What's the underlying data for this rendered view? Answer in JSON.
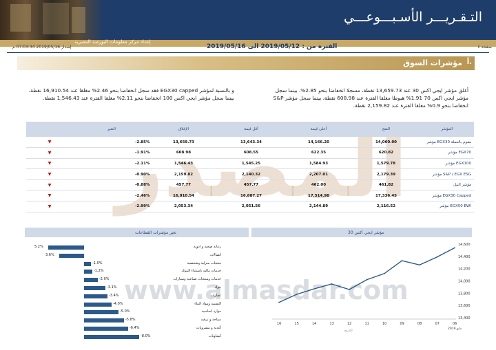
{
  "banner": {
    "title": "التـقـريـــر الأسـبـــوعـــي"
  },
  "subbar": {
    "text": "إعداد مركز معلومات البورصة المصرية"
  },
  "meta": {
    "page": "صفحة ٤",
    "period": "الفترة من : 2019/05/12 الى 2019/05/16",
    "issued": "إصدار 2019/05/16 07:03:34 م"
  },
  "section": {
    "num": "أ.",
    "title": "مؤشرات السوق"
  },
  "paragraphs": {
    "right": "أغلق مؤشر ايجي اكس 30 عند 13,659.73 نقطة، مسجلا انخفاضا بنحو 2.85%. بينما سجل مؤشر ايجي اكس 70 1.91% هبوطا مغلقا الفترة عند 608.98 نقطة، بينما سجل مؤشر S&P انخفاضا بنحو 0.9% مغلقا الفترة عند 2,159.82 نقطة.",
    "left": "و بالنسبة لمؤشر EGX30 capped فقد سجل انخفاضا بنحو 2.46% مغلقا عند 16,910.54 نقطة، بينما سجل مؤشر ايجي اكس 100 انخفاضا بنحو 2.11% مغلقا الفترة عند 1,546.43 نقطة."
  },
  "table": {
    "headers": [
      "المؤشر",
      "الفتح",
      "أعلى قيمة",
      "أقل قيمة",
      "الإغلاق",
      "التغير"
    ],
    "rows": [
      {
        "name": "مؤشر EGX30 مقوم بالعملة",
        "open": "14,060.00",
        "high": "14,166.20",
        "low": "13,643.34",
        "close": "13,659.73",
        "change": "-2.85%"
      },
      {
        "name": "مؤشر EGX70",
        "open": "620.82",
        "high": "622.35",
        "low": "608.55",
        "close": "608.98",
        "change": "-1.91%"
      },
      {
        "name": "مؤشر EGX100",
        "open": "1,579.78",
        "high": "1,584.93",
        "low": "1,545.25",
        "close": "1,546.43",
        "change": "-2.11%"
      },
      {
        "name": "مؤشر S&P / EGX ESG",
        "open": "2,179.39",
        "high": "2,207.01",
        "low": "2,140.32",
        "close": "2,159.82",
        "change": "-0.90%"
      },
      {
        "name": "مؤشر النيل",
        "open": "461.82",
        "high": "462.00",
        "low": "457.77",
        "close": "457.77",
        "change": "-0.88%"
      },
      {
        "name": "مؤشر EGX30 Capped",
        "open": "17,336.45",
        "high": "17,514.98",
        "low": "16,887.27",
        "close": "16,910.54",
        "change": "-2.46%"
      },
      {
        "name": "مؤشر EGX50 EWI",
        "open": "2,116.52",
        "high": "2,144.89",
        "low": "2,051.56",
        "close": "2,053.34",
        "change": "-2.99%"
      }
    ]
  },
  "watermark": {
    "text": "المصدر",
    "url": "www.almasdar.com"
  },
  "panels": {
    "sectors_title": "تغير مؤشرات القطاعات",
    "egx30_title": "مؤشر ايجي اكس 30"
  },
  "chart_data": [
    {
      "type": "bar",
      "title": "تغير مؤشرات القطاعات",
      "categories": [
        "رعاية صحية و ادوية",
        "اتصالات",
        "منتجات منزلية وشخصية",
        "خدمات مالية باستثناء البنوك",
        "خدمات ومنتجات صناعية وسيارات",
        "بنوك",
        "عقارات",
        "التشييد ومواد البناء",
        "موارد اساسية",
        "سياحة و ترفيه",
        "أغذية و مشروبات",
        "كيماويات"
      ],
      "values": [
        5.2,
        3.6,
        -1.0,
        -1.2,
        -2.0,
        -3.1,
        -3.4,
        -4.0,
        -5.0,
        -5.8,
        -6.4,
        -8.0
      ],
      "value_labels": [
        "5.2%",
        "3.6%",
        "-1.0%",
        "-1.2%",
        "-2.0%",
        "-3.1%",
        "-3.4%",
        "-4.0%",
        "-5.0%",
        "-5.8%",
        "-6.4%",
        "-8.0%"
      ]
    },
    {
      "type": "line",
      "title": "مؤشر ايجي اكس 30",
      "x": [
        "16",
        "15",
        "14",
        "13",
        "12",
        "11",
        "10",
        "09",
        "08",
        "07",
        "06"
      ],
      "y": [
        13650,
        13780,
        13870,
        13950,
        13860,
        14020,
        14120,
        14330,
        14260,
        14390,
        14540
      ],
      "ylim": [
        13400,
        14600
      ],
      "yticks": [
        "14,600",
        "14,400",
        "14,200",
        "14,000",
        "13,800",
        "13,600",
        "13,400"
      ],
      "xlabel": "التاريخ",
      "x_footer": "مايو 2019"
    }
  ]
}
